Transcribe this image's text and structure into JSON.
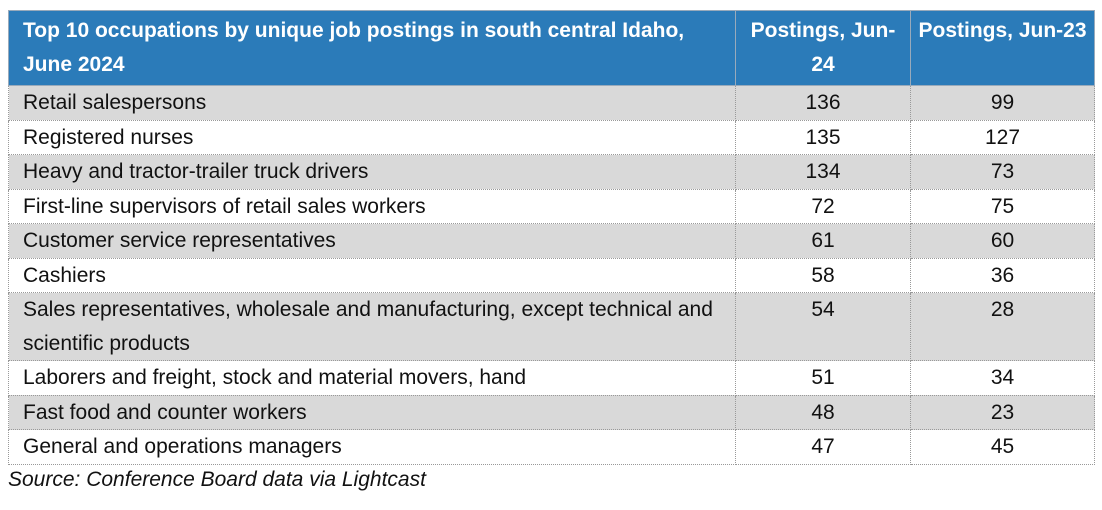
{
  "table": {
    "header": [
      "Top 10 occupations by unique job postings in south central Idaho, June 2024",
      "Postings, Jun-24",
      "Postings, Jun-23"
    ],
    "rows": [
      [
        "Retail salespersons",
        136,
        99
      ],
      [
        "Registered nurses",
        135,
        127
      ],
      [
        "Heavy and tractor-trailer truck drivers",
        134,
        73
      ],
      [
        "First-line supervisors of retail sales workers",
        72,
        75
      ],
      [
        "Customer service representatives",
        61,
        60
      ],
      [
        "Cashiers",
        58,
        36
      ],
      [
        "Sales representatives, wholesale and manufacturing, except technical and scientific products",
        54,
        28
      ],
      [
        "Laborers and freight, stock and material movers, hand",
        51,
        34
      ],
      [
        "Fast food and counter workers",
        48,
        23
      ],
      [
        "General and operations managers",
        47,
        45
      ]
    ]
  },
  "source": "Source: Conference Board data via Lightcast"
}
